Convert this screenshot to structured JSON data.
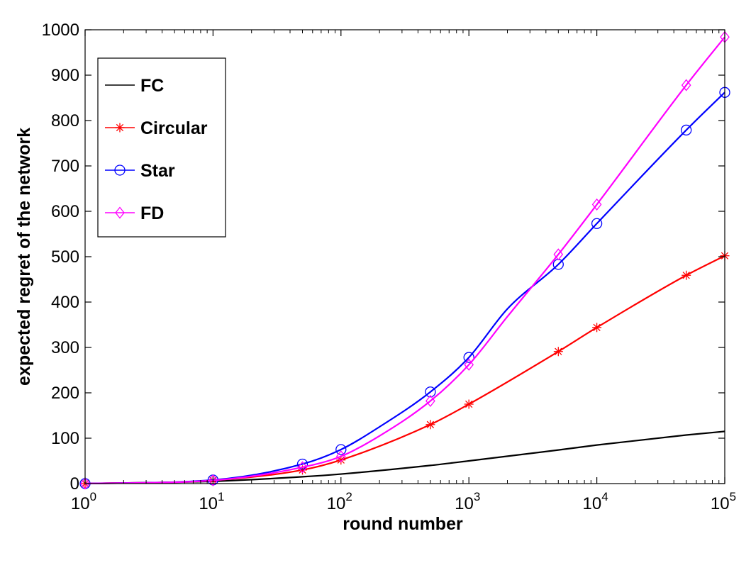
{
  "chart_data": {
    "type": "line",
    "xlabel": "round number",
    "ylabel": "expected regret of the network",
    "xscale": "log",
    "xlim": [
      1,
      100000
    ],
    "ylim": [
      0,
      1000
    ],
    "xticks": [
      {
        "value": 1,
        "base": "10",
        "exp": "0"
      },
      {
        "value": 10,
        "base": "10",
        "exp": "1"
      },
      {
        "value": 100,
        "base": "10",
        "exp": "2"
      },
      {
        "value": 1000,
        "base": "10",
        "exp": "3"
      },
      {
        "value": 10000,
        "base": "10",
        "exp": "4"
      },
      {
        "value": 100000,
        "base": "10",
        "exp": "5"
      }
    ],
    "yticks": [
      "0",
      "100",
      "200",
      "300",
      "400",
      "500",
      "600",
      "700",
      "800",
      "900",
      "1000"
    ],
    "legend_position": "top-left",
    "grid": false,
    "series": [
      {
        "name": "FC",
        "color": "#000000",
        "marker": "none",
        "x": [
          1,
          10,
          50,
          100,
          500,
          1000,
          5000,
          10000,
          50000,
          100000
        ],
        "y": [
          0,
          5,
          15,
          21,
          40,
          50,
          74,
          85,
          107,
          115
        ],
        "markers_at": []
      },
      {
        "name": "Circular",
        "color": "#ff0000",
        "marker": "asterisk",
        "x": [
          1,
          10,
          50,
          100,
          500,
          1000,
          5000,
          10000,
          50000,
          100000
        ],
        "y": [
          0,
          7,
          30,
          52,
          130,
          175,
          291,
          344,
          459,
          502
        ],
        "markers_at": [
          1,
          10,
          50,
          100,
          500,
          1000,
          5000,
          10000,
          50000,
          100000
        ]
      },
      {
        "name": "Star",
        "color": "#0000ff",
        "marker": "circle",
        "x": [
          1,
          10,
          50,
          100,
          200,
          500,
          1000,
          2000,
          5000,
          10000,
          50000,
          100000
        ],
        "y": [
          0,
          8,
          43,
          75,
          125,
          202,
          278,
          385,
          483,
          573,
          779,
          862
        ],
        "markers_at": [
          1,
          10,
          50,
          100,
          500,
          1000,
          5000,
          10000,
          50000,
          100000
        ]
      },
      {
        "name": "FD",
        "color": "#ff00ff",
        "marker": "diamond",
        "x": [
          1,
          10,
          50,
          100,
          200,
          500,
          1000,
          2000,
          5000,
          10000,
          50000,
          100000
        ],
        "y": [
          0,
          7,
          36,
          60,
          105,
          182,
          262,
          368,
          505,
          615,
          878,
          984
        ],
        "markers_at": [
          1,
          10,
          50,
          100,
          500,
          1000,
          5000,
          10000,
          50000,
          100000
        ]
      }
    ]
  }
}
